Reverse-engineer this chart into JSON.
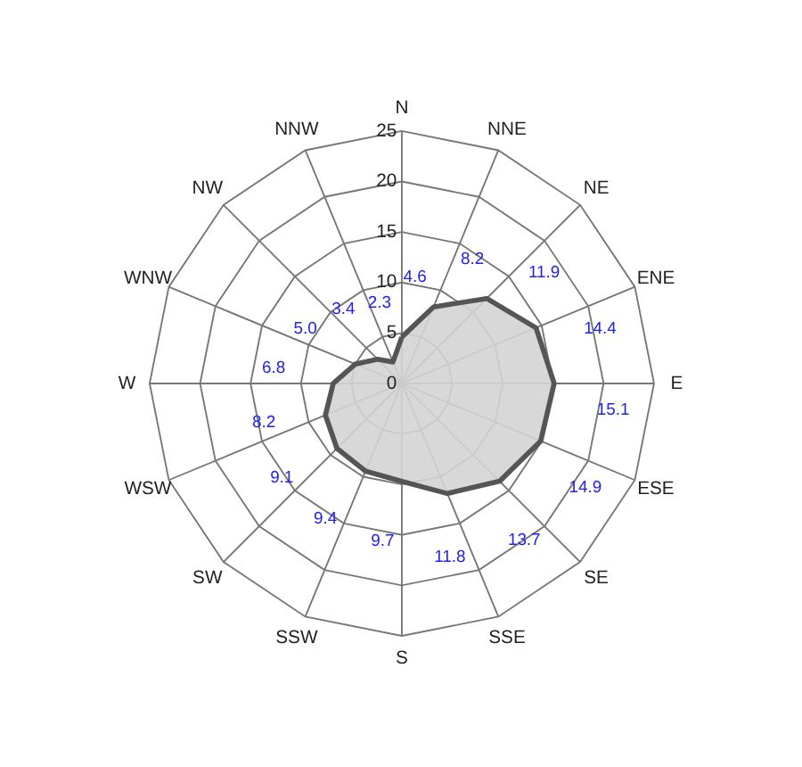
{
  "chart_data": {
    "type": "radar",
    "categories": [
      "N",
      "NNE",
      "NE",
      "ENE",
      "E",
      "ESE",
      "SE",
      "SSE",
      "S",
      "SSW",
      "SW",
      "WSW",
      "W",
      "WNW",
      "NW",
      "NNW"
    ],
    "series": [
      {
        "color": "#555555",
        "values": [
          4.6,
          8.2,
          11.9,
          14.4,
          15.1,
          14.9,
          13.7,
          11.8,
          9.7,
          9.4,
          9.1,
          8.2,
          6.8,
          5.0,
          3.4,
          2.3
        ]
      }
    ],
    "value_labels": [
      "4.6",
      "8.2",
      "11.9",
      "14.4",
      "15.1",
      "14.9",
      "13.7",
      "11.8",
      "9.7",
      "9.4",
      "9.1",
      "8.2",
      "6.8",
      "5.0",
      "3.4",
      "2.3"
    ],
    "ylim": [
      0,
      25
    ],
    "yticks": [
      0,
      5,
      10,
      15,
      20,
      25
    ],
    "grid": true
  }
}
